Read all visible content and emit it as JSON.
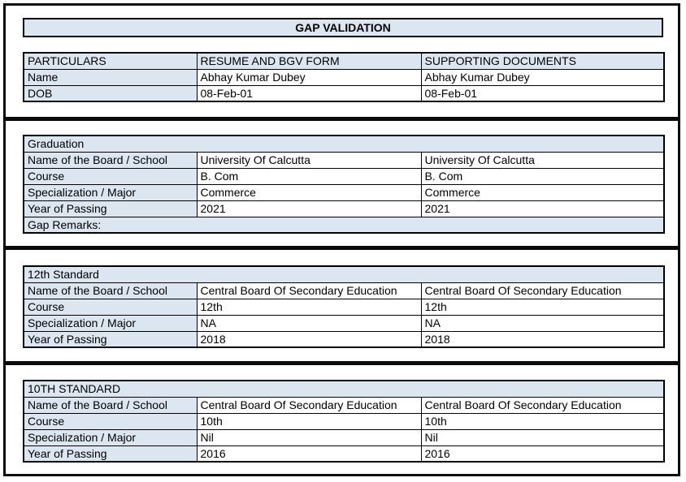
{
  "title": "GAP VALIDATION",
  "colors": {
    "accent": "#DCE6F1",
    "border": "#000000",
    "background": "#FFFFFF"
  },
  "particulars_table": {
    "headers": [
      "PARTICULARS",
      "RESUME AND BGV FORM",
      "SUPPORTING DOCUMENTS"
    ],
    "rows": [
      {
        "label": "Name",
        "resume": "Abhay Kumar Dubey",
        "supporting": "Abhay Kumar Dubey"
      },
      {
        "label": "DOB",
        "resume": "08-Feb-01",
        "supporting": "08-Feb-01"
      }
    ]
  },
  "sections": [
    {
      "heading": "Graduation",
      "rows": [
        {
          "label": "Name of the Board / School",
          "resume": "University Of Calcutta",
          "supporting": "University Of Calcutta"
        },
        {
          "label": "Course",
          "resume": "B. Com",
          "supporting": "B. Com"
        },
        {
          "label": "Specialization / Major",
          "resume": "Commerce",
          "supporting": "Commerce"
        },
        {
          "label": "Year of Passing",
          "resume": "2021",
          "supporting": "2021"
        }
      ],
      "footer": "Gap Remarks:"
    },
    {
      "heading": "12th Standard",
      "rows": [
        {
          "label": "Name of the Board / School",
          "resume": "Central Board Of Secondary Education",
          "supporting": "Central Board Of Secondary Education"
        },
        {
          "label": "Course",
          "resume": "12th",
          "supporting": "12th"
        },
        {
          "label": "Specialization / Major",
          "resume": "NA",
          "supporting": "NA"
        },
        {
          "label": "Year of Passing",
          "resume": "2018",
          "supporting": "2018"
        }
      ]
    },
    {
      "heading": "10TH STANDARD",
      "rows": [
        {
          "label": "Name of the Board / School",
          "resume": "Central Board Of Secondary Education",
          "supporting": "Central Board Of Secondary Education"
        },
        {
          "label": "Course",
          "resume": "10th",
          "supporting": "10th"
        },
        {
          "label": "Specialization / Major",
          "resume": "Nil",
          "supporting": "Nil"
        },
        {
          "label": "Year of Passing",
          "resume": "2016",
          "supporting": "2016"
        }
      ]
    }
  ]
}
